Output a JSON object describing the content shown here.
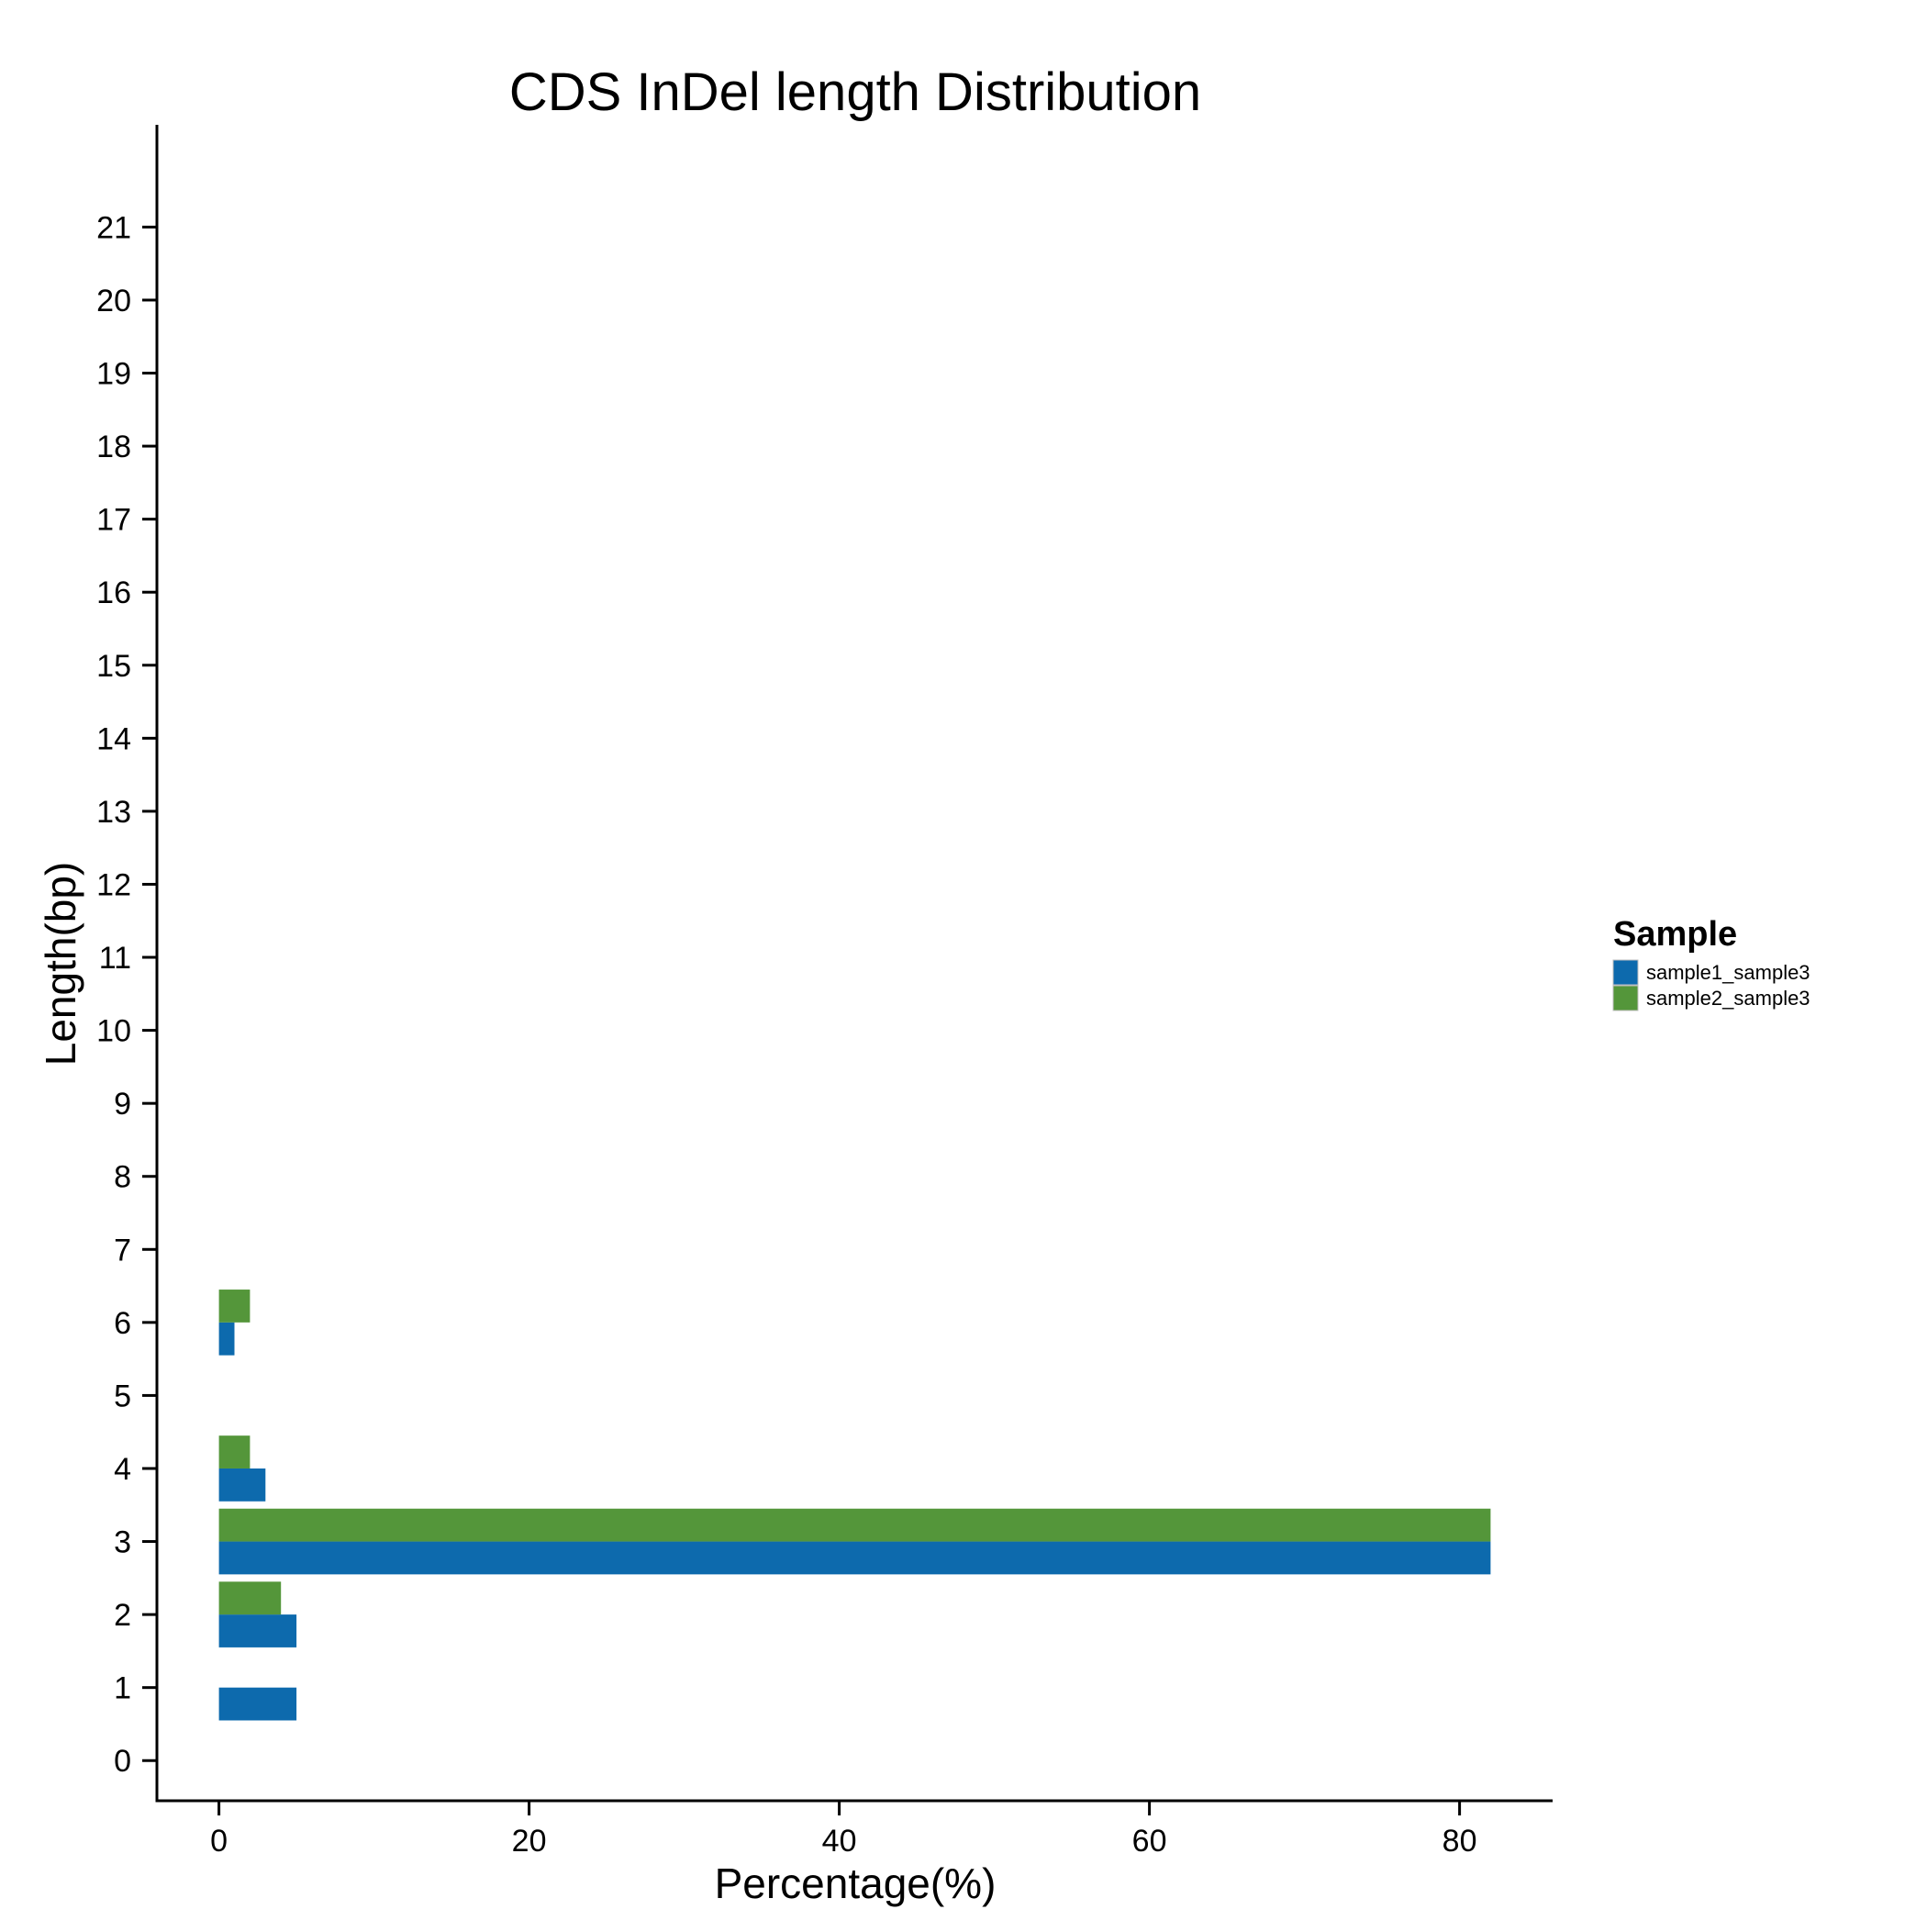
{
  "chart_data": {
    "type": "bar",
    "orientation": "horizontal",
    "title": "CDS InDel length Distribution",
    "xlabel": "Percentage(%)",
    "ylabel": "Length(bp)",
    "xlim": [
      -4,
      86
    ],
    "ylim": [
      -0.55,
      22.4
    ],
    "x_ticks": [
      0,
      20,
      40,
      60,
      80
    ],
    "x_tick_labels": [
      "0",
      "20",
      "40",
      "60",
      "80"
    ],
    "y_ticks": [
      0,
      1,
      2,
      3,
      4,
      5,
      6,
      7,
      8,
      9,
      10,
      11,
      12,
      13,
      14,
      15,
      16,
      17,
      18,
      19,
      20,
      21
    ],
    "y_tick_labels": [
      "0",
      "1",
      "2",
      "3",
      "4",
      "5",
      "6",
      "7",
      "8",
      "9",
      "10",
      "11",
      "12",
      "13",
      "14",
      "15",
      "16",
      "17",
      "18",
      "19",
      "20",
      "21"
    ],
    "grid": false,
    "legend": {
      "title": "Sample",
      "placement": "right"
    },
    "categories": [
      1,
      2,
      3,
      4,
      6
    ],
    "series": [
      {
        "name": "sample1_sample3",
        "color": "#0D6AAD",
        "values": [
          5,
          5,
          82,
          3,
          1
        ]
      },
      {
        "name": "sample2_sample3",
        "color": "#54963A",
        "values": [
          0,
          4,
          82,
          2,
          2
        ]
      }
    ]
  }
}
